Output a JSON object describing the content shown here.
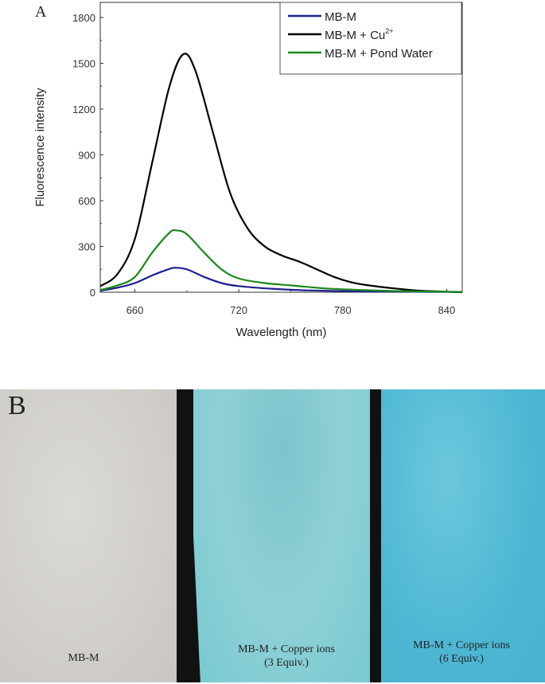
{
  "panel_a_label": "A",
  "panel_b_label": "B",
  "chart_data": {
    "type": "line",
    "title": "",
    "xlabel": "Wavelength (nm)",
    "ylabel": "Fluorescence intensity",
    "xlim": [
      640,
      849
    ],
    "ylim": [
      0,
      1900
    ],
    "xticks": [
      660,
      720,
      780,
      840
    ],
    "yticks": [
      0,
      300,
      600,
      900,
      1200,
      1500,
      1800
    ],
    "grid": false,
    "legend_position": "top-right",
    "series": [
      {
        "name": "MB-M",
        "color": "#1f1f8f",
        "x": [
          640,
          650,
          660,
          670,
          678,
          683,
          690,
          700,
          710,
          720,
          740,
          760,
          790,
          820,
          849
        ],
        "y": [
          10,
          30,
          60,
          110,
          145,
          160,
          150,
          100,
          60,
          40,
          22,
          12,
          6,
          3,
          2
        ]
      },
      {
        "name": "MB-M + Cu2+",
        "color": "#000000",
        "x": [
          640,
          650,
          660,
          670,
          680,
          688,
          695,
          705,
          715,
          725,
          735,
          745,
          755,
          765,
          775,
          785,
          795,
          810,
          825,
          849
        ],
        "y": [
          40,
          120,
          350,
          850,
          1350,
          1560,
          1450,
          1050,
          650,
          420,
          300,
          240,
          200,
          150,
          100,
          65,
          45,
          25,
          10,
          0
        ]
      },
      {
        "name": "MB-M + Pond Water",
        "color": "#1a8a1a",
        "x": [
          640,
          650,
          660,
          670,
          680,
          684,
          690,
          700,
          710,
          720,
          735,
          750,
          770,
          790,
          810,
          849
        ],
        "y": [
          15,
          45,
          100,
          260,
          390,
          405,
          380,
          260,
          150,
          90,
          60,
          45,
          25,
          15,
          8,
          2
        ]
      }
    ],
    "legend": [
      "MB-M",
      "MB-M + Cu",
      "MB-M + Pond Water"
    ],
    "legend_superscript": "2+"
  },
  "photo": {
    "strips": [
      {
        "label": "MB-M",
        "sub": ""
      },
      {
        "label": "MB-M + Copper ions",
        "sub": "(3 Equiv.)"
      },
      {
        "label": "MB-M + Copper ions",
        "sub": "(6 Equiv.)"
      }
    ]
  }
}
